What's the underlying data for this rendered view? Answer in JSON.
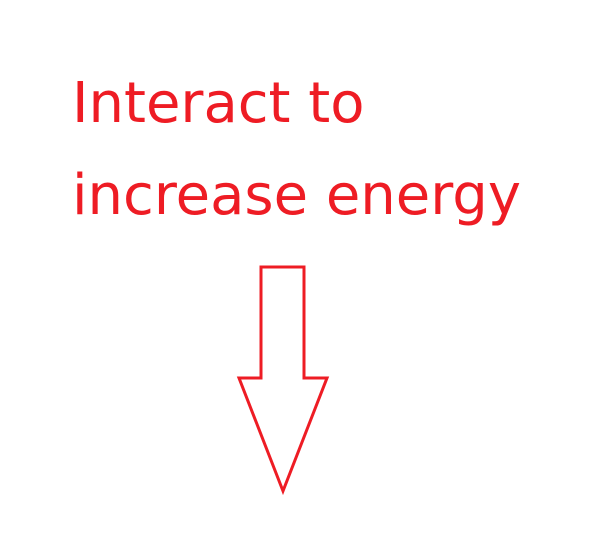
{
  "instruction": {
    "line1": "Interact to",
    "line2": "increase energy"
  },
  "colors": {
    "text": "#ee1c24",
    "arrow": "#ee1c24",
    "background": "#ffffff"
  },
  "arrow": {
    "icon": "down-arrow-icon",
    "direction": "down"
  }
}
